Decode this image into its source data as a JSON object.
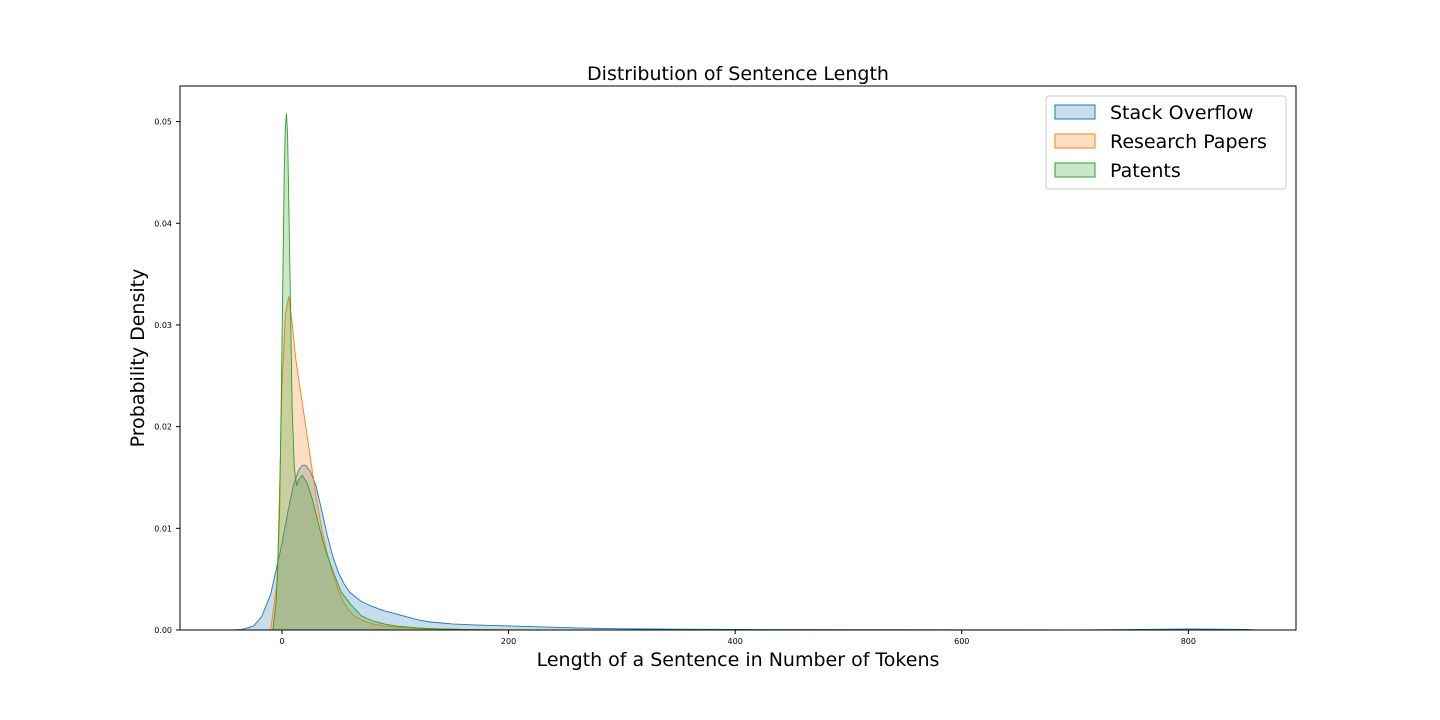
{
  "chart_data": {
    "type": "area",
    "title": "Distribution of Sentence Length",
    "xlabel": "Length of a Sentence in Number of Tokens",
    "ylabel": "Probability Density",
    "xlim": [
      -90,
      895
    ],
    "ylim": [
      0,
      0.0535
    ],
    "xticks": [
      0,
      200,
      400,
      600,
      800
    ],
    "xtick_labels": [
      "0",
      "200",
      "400",
      "600",
      "800"
    ],
    "yticks": [
      0,
      0.01,
      0.02,
      0.03,
      0.04,
      0.05
    ],
    "ytick_labels": [
      "0.00",
      "0.01",
      "0.02",
      "0.03",
      "0.04",
      "0.05"
    ],
    "grid": false,
    "legend_position": "top-right",
    "series": [
      {
        "name": "Stack Overflow",
        "color": "#1f77b4",
        "x": [
          -45,
          -35,
          -25,
          -18,
          -10,
          -4,
          0,
          5,
          10,
          15,
          18,
          21,
          25,
          30,
          35,
          40,
          45,
          50,
          55,
          60,
          70,
          80,
          90,
          100,
          110,
          120,
          130,
          140,
          150,
          170,
          200,
          230,
          260,
          300,
          350,
          400,
          500,
          600,
          700,
          760,
          800,
          850,
          860
        ],
        "y": [
          0,
          5e-05,
          0.0004,
          0.0013,
          0.0035,
          0.0065,
          0.0085,
          0.0115,
          0.0142,
          0.0158,
          0.0162,
          0.0162,
          0.0156,
          0.0142,
          0.0118,
          0.0093,
          0.0072,
          0.0056,
          0.0045,
          0.0037,
          0.0028,
          0.0023,
          0.0019,
          0.0016,
          0.0013,
          0.001,
          0.0008,
          0.0007,
          0.0006,
          0.0005,
          0.0004,
          0.0003,
          0.0002,
          0.00012,
          8e-05,
          5e-05,
          3e-05,
          2e-05,
          1e-05,
          5e-05,
          0.0001,
          5e-05,
          0
        ]
      },
      {
        "name": "Research Papers",
        "color": "#ff7f0e",
        "x": [
          -10,
          -4,
          0,
          3,
          6,
          9,
          12,
          15,
          20,
          25,
          30,
          35,
          40,
          45,
          50,
          55,
          60,
          65,
          70,
          80,
          90,
          100,
          120,
          140,
          160,
          200,
          230
        ],
        "y": [
          0,
          0.005,
          0.024,
          0.031,
          0.0328,
          0.0302,
          0.0268,
          0.0245,
          0.0208,
          0.017,
          0.0132,
          0.01,
          0.0075,
          0.0055,
          0.0038,
          0.0026,
          0.0018,
          0.0013,
          0.001,
          0.0006,
          0.0004,
          0.0003,
          0.00015,
          0.0001,
          5e-05,
          2e-05,
          0
        ]
      },
      {
        "name": "Patents",
        "color": "#2ca02c",
        "x": [
          -8,
          -5,
          -2,
          0,
          2,
          3,
          4,
          5,
          7,
          9,
          11,
          13,
          15,
          18,
          22,
          27,
          32,
          38,
          45,
          52,
          60,
          70,
          80,
          90,
          100,
          120,
          140,
          170,
          200
        ],
        "y": [
          0,
          0.003,
          0.012,
          0.028,
          0.045,
          0.0495,
          0.0508,
          0.0485,
          0.0355,
          0.0218,
          0.0158,
          0.0142,
          0.0148,
          0.0152,
          0.0145,
          0.0128,
          0.0105,
          0.008,
          0.0058,
          0.0038,
          0.0026,
          0.0014,
          0.0009,
          0.0006,
          0.0004,
          0.0002,
          0.0001,
          3e-05,
          0
        ]
      }
    ]
  }
}
